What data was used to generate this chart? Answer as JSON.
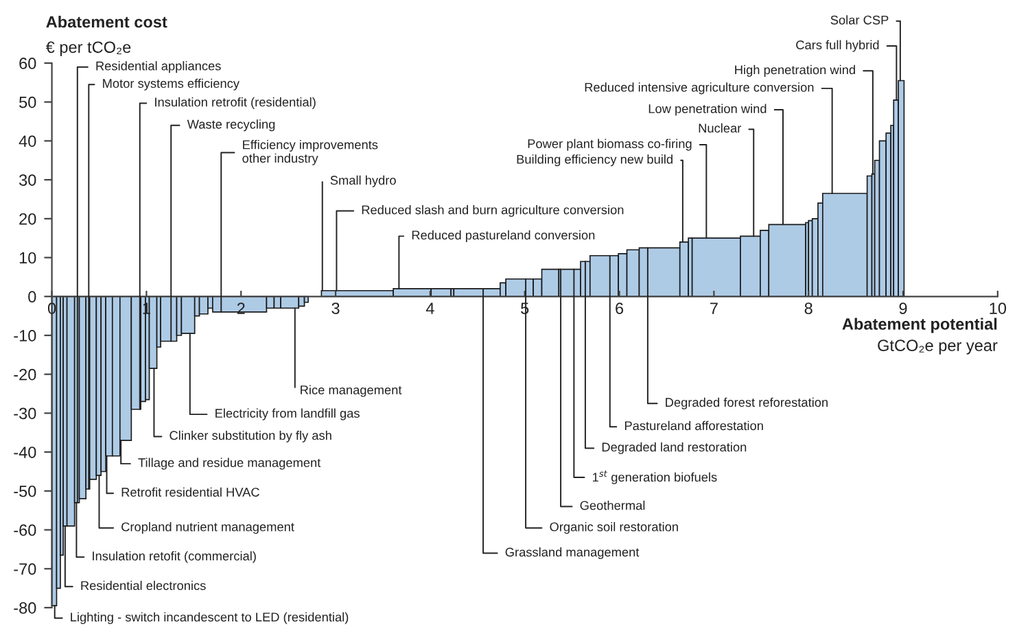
{
  "chart_data": {
    "type": "histogram",
    "ylabel": "Abatement cost\n€ per tCO₂e",
    "xlabel": "Abatement potential\nGtCO₂e per year",
    "color": "#aecbe6",
    "bins": [
      0,
      0.05,
      0.09,
      0.12,
      0.16,
      0.24,
      0.29,
      0.36,
      0.4,
      0.47,
      0.52,
      0.57,
      0.64,
      0.72,
      0.84,
      0.94,
      0.99,
      1.03,
      1.11,
      1.15,
      1.32,
      1.37,
      1.51,
      1.56,
      1.65,
      1.7,
      2.27,
      2.35,
      2.42,
      2.61,
      2.67,
      2.71,
      2.85,
      3.0,
      3.61,
      4.01,
      4.22,
      4.25,
      4.74,
      4.8,
      5.09,
      5.18,
      5.36,
      5.59,
      5.69,
      5.99,
      6.08,
      6.21,
      6.64,
      6.73,
      6.77,
      7.28,
      7.49,
      7.58,
      7.97,
      8.0,
      8.04,
      8.1,
      8.15,
      8.62,
      8.67,
      8.7,
      8.75,
      8.82,
      8.87,
      8.9,
      8.95,
      9.01
    ],
    "values": [
      -79.5,
      -75,
      -66.5,
      -59,
      -59,
      -53,
      -52,
      -49.5,
      -47,
      -46,
      -45,
      -41,
      -41,
      -37,
      -29,
      -27,
      -26.5,
      -18.5,
      -13,
      -11.5,
      -10,
      -9.5,
      -5,
      -4.5,
      -3,
      -4,
      -3,
      -3,
      -3,
      -2.5,
      -1.5,
      null,
      1.5,
      1.5,
      2,
      2,
      2,
      2,
      3.5,
      4.5,
      4.5,
      7,
      7,
      9,
      10.5,
      11,
      12,
      12.5,
      14,
      15,
      15,
      15.5,
      17,
      18.5,
      19,
      19.5,
      20,
      24,
      26.5,
      31,
      31.5,
      35,
      40,
      42,
      44,
      50.5,
      55.5
    ],
    "xlim": [
      0,
      10
    ],
    "xticks": [
      0,
      1,
      2,
      3,
      4,
      5,
      6,
      7,
      8,
      9,
      10
    ],
    "ylim": [
      -80,
      60
    ],
    "yticks": [
      -80,
      -70,
      -60,
      -50,
      -40,
      -30,
      -20,
      -10,
      0,
      10,
      20,
      30,
      40,
      50,
      60
    ],
    "grid": false,
    "legend": false,
    "annotations": [
      {
        "text": "Residential appliances",
        "x": 0.27,
        "y": -53
      },
      {
        "text": "Motor systems efficiency",
        "x": 0.39,
        "y": -49.5
      },
      {
        "text": "Insulation retrofit (residential)",
        "x": 0.93,
        "y": -29
      },
      {
        "text": "Waste recycling",
        "x": 1.26,
        "y": -11.5
      },
      {
        "text": "Efficiency improvements\nother industry",
        "x": 1.79,
        "y": -4
      },
      {
        "text": "Small hydro",
        "x": 2.86,
        "y": 1.5
      },
      {
        "text": "Reduced slash and burn agriculture conversion",
        "x": 3.01,
        "y": 1.5
      },
      {
        "text": "Reduced pastureland conversion",
        "x": 3.67,
        "y": 2
      },
      {
        "text": "Solar CSP",
        "x": 8.97,
        "y": 55.5
      },
      {
        "text": "Cars full hybrid",
        "x": 8.93,
        "y": 50.5
      },
      {
        "text": "High penetration wind",
        "x": 8.68,
        "y": 31.5
      },
      {
        "text": "Reduced intensive agriculture conversion",
        "x": 8.25,
        "y": 26.5
      },
      {
        "text": "Low penetration wind",
        "x": 7.73,
        "y": 18.5
      },
      {
        "text": "Nuclear",
        "x": 7.42,
        "y": 15.5
      },
      {
        "text": "Power plant biomass co-firing",
        "x": 6.92,
        "y": 15
      },
      {
        "text": "Building efficiency new build",
        "x": 6.67,
        "y": 14
      },
      {
        "text": "Rice management",
        "x": 2.57,
        "y": -3
      },
      {
        "text": "Electricity from landfill gas",
        "x": 1.46,
        "y": -9.5
      },
      {
        "text": "Clinker substitution by fly ash",
        "x": 1.08,
        "y": -18.5
      },
      {
        "text": "Tillage and residue management",
        "x": 0.73,
        "y": -37
      },
      {
        "text": "Retrofit residential HVAC",
        "x": 0.58,
        "y": -41
      },
      {
        "text": "Cropland nutrient management",
        "x": 0.5,
        "y": -46
      },
      {
        "text": "Insulation retofit (commercial)",
        "x": 0.26,
        "y": -53
      },
      {
        "text": "Residential electronics",
        "x": 0.14,
        "y": -59
      },
      {
        "text": "Lighting - switch incandescent to LED (residential)",
        "x": 0.03,
        "y": -79.5
      },
      {
        "text": "Degraded forest reforestation",
        "x": 6.3,
        "y": 12.5
      },
      {
        "text": "Pastureland afforestation",
        "x": 5.9,
        "y": 10.5
      },
      {
        "text": "Degraded land restoration",
        "x": 5.64,
        "y": 9
      },
      {
        "text": "1$^{st}$ generation biofuels",
        "x": 5.52,
        "y": 7
      },
      {
        "text": "Geothermal",
        "x": 5.38,
        "y": 7
      },
      {
        "text": "Organic soil restoration",
        "x": 5.01,
        "y": 4.5
      },
      {
        "text": "Grassland management",
        "x": 4.56,
        "y": 2
      }
    ]
  }
}
